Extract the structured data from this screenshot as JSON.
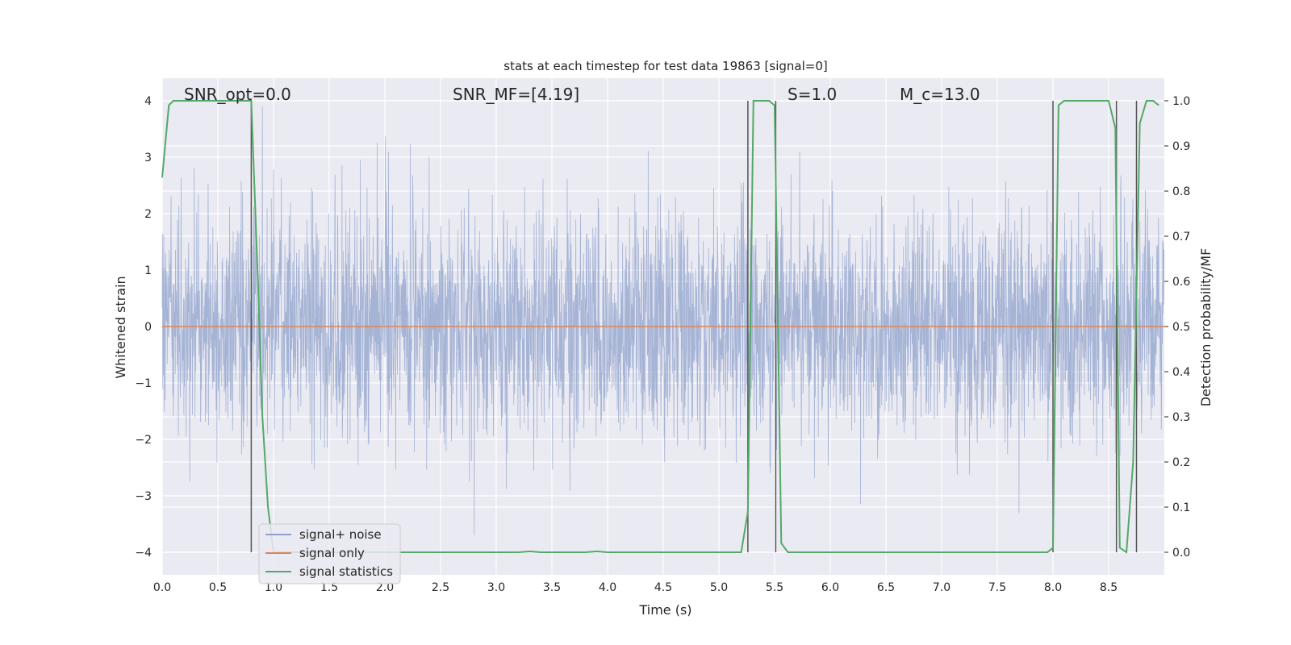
{
  "chart_data": {
    "type": "line",
    "title": "stats at each timestep for test data 19863 [signal=0]",
    "xlabel": "Time (s)",
    "ylabel": "Whitened strain",
    "y2label": "Detection probability/MF",
    "xlim": [
      0.0,
      9.0
    ],
    "ylim": [
      -4.4,
      4.4
    ],
    "y2lim": [
      -0.05,
      1.05
    ],
    "x_ticks": [
      "0.0",
      "0.5",
      "1.0",
      "1.5",
      "2.0",
      "2.5",
      "3.0",
      "3.5",
      "4.0",
      "4.5",
      "5.0",
      "5.5",
      "6.0",
      "6.5",
      "7.0",
      "7.5",
      "8.0",
      "8.5"
    ],
    "y_ticks": [
      "−4",
      "−3",
      "−2",
      "−1",
      "0",
      "1",
      "2",
      "3",
      "4"
    ],
    "y2_ticks": [
      "0.0",
      "0.1",
      "0.2",
      "0.3",
      "0.4",
      "0.5",
      "0.6",
      "0.7",
      "0.8",
      "0.9",
      "1.0"
    ],
    "grid": true,
    "legend_position": "lower-left",
    "annotations": {
      "snr_opt": "SNR_opt=0.0",
      "snr_mf": "SNR_MF=[4.19]",
      "s": "S=1.0",
      "mc": "M_c=13.0"
    },
    "series": [
      {
        "name": "signal+ noise",
        "color": "#8da0cb",
        "description_of_values": "whitened noise, std ~1, range about -4 to 3.8",
        "sample_rate_hz": 2048
      },
      {
        "name": "signal only",
        "color": "#dd8452",
        "values": "zero",
        "y_constant": 0
      },
      {
        "name": "signal statistics",
        "color": "#55a868",
        "axis": "right",
        "x": [
          0.0,
          0.06,
          0.1,
          0.8,
          0.86,
          0.9,
          0.95,
          1.0,
          3.2,
          3.3,
          3.4,
          3.8,
          3.9,
          4.0,
          5.2,
          5.26,
          5.31,
          5.45,
          5.5,
          5.56,
          5.62,
          7.95,
          8.0,
          8.05,
          8.1,
          8.5,
          8.56,
          8.6,
          8.66,
          8.72,
          8.78,
          8.84,
          8.9,
          8.95
        ],
        "y": [
          0.83,
          0.99,
          1.0,
          1.0,
          0.6,
          0.3,
          0.1,
          0.0,
          0.0,
          0.002,
          0.0,
          0.0,
          0.002,
          0.0,
          0.0,
          0.09,
          1.0,
          1.0,
          0.99,
          0.02,
          0.0,
          0.0,
          0.01,
          0.99,
          1.0,
          1.0,
          0.94,
          0.01,
          0.0,
          0.2,
          0.95,
          1.0,
          1.0,
          0.99
        ]
      }
    ],
    "vertical_lines": {
      "color": "#555555",
      "x": [
        0.8,
        5.26,
        5.51,
        8.0,
        8.57,
        8.75
      ],
      "y_range": [
        -4,
        4
      ]
    }
  }
}
